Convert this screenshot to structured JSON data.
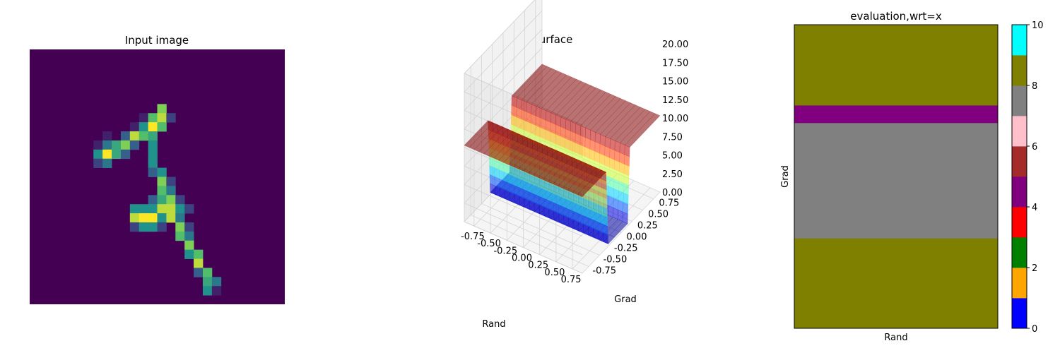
{
  "chart_data": [
    {
      "type": "heatmap",
      "title": "Input image",
      "grid": false,
      "axes_visible": false,
      "colormap": "viridis",
      "shape": [
        28,
        28
      ],
      "pixels": [
        {
          "r": 6,
          "c": 14,
          "v": 0.8
        },
        {
          "r": 7,
          "c": 12,
          "v": 0.1
        },
        {
          "r": 7,
          "c": 13,
          "v": 0.7
        },
        {
          "r": 7,
          "c": 14,
          "v": 0.9
        },
        {
          "r": 7,
          "c": 15,
          "v": 0.2
        },
        {
          "r": 8,
          "c": 11,
          "v": 0.1
        },
        {
          "r": 8,
          "c": 12,
          "v": 0.5
        },
        {
          "r": 8,
          "c": 13,
          "v": 1.0
        },
        {
          "r": 8,
          "c": 14,
          "v": 0.7
        },
        {
          "r": 9,
          "c": 8,
          "v": 0.1
        },
        {
          "r": 9,
          "c": 10,
          "v": 0.3
        },
        {
          "r": 9,
          "c": 11,
          "v": 0.9
        },
        {
          "r": 9,
          "c": 12,
          "v": 0.7
        },
        {
          "r": 9,
          "c": 13,
          "v": 0.6
        },
        {
          "r": 10,
          "c": 7,
          "v": 0.1
        },
        {
          "r": 10,
          "c": 8,
          "v": 0.4
        },
        {
          "r": 10,
          "c": 9,
          "v": 0.6
        },
        {
          "r": 10,
          "c": 10,
          "v": 0.8
        },
        {
          "r": 10,
          "c": 11,
          "v": 0.3
        },
        {
          "r": 10,
          "c": 13,
          "v": 0.5
        },
        {
          "r": 11,
          "c": 7,
          "v": 0.5
        },
        {
          "r": 11,
          "c": 8,
          "v": 1.0
        },
        {
          "r": 11,
          "c": 9,
          "v": 0.6
        },
        {
          "r": 11,
          "c": 10,
          "v": 0.3
        },
        {
          "r": 11,
          "c": 13,
          "v": 0.5
        },
        {
          "r": 12,
          "c": 7,
          "v": 0.2
        },
        {
          "r": 12,
          "c": 8,
          "v": 0.4
        },
        {
          "r": 12,
          "c": 13,
          "v": 0.5
        },
        {
          "r": 13,
          "c": 13,
          "v": 0.3
        },
        {
          "r": 13,
          "c": 14,
          "v": 0.5
        },
        {
          "r": 14,
          "c": 14,
          "v": 0.8
        },
        {
          "r": 14,
          "c": 15,
          "v": 0.2
        },
        {
          "r": 15,
          "c": 14,
          "v": 0.7
        },
        {
          "r": 15,
          "c": 15,
          "v": 0.4
        },
        {
          "r": 16,
          "c": 13,
          "v": 0.3
        },
        {
          "r": 16,
          "c": 14,
          "v": 0.6
        },
        {
          "r": 16,
          "c": 15,
          "v": 0.8
        },
        {
          "r": 16,
          "c": 16,
          "v": 0.2
        },
        {
          "r": 17,
          "c": 11,
          "v": 0.5
        },
        {
          "r": 17,
          "c": 12,
          "v": 0.5
        },
        {
          "r": 17,
          "c": 13,
          "v": 0.5
        },
        {
          "r": 17,
          "c": 14,
          "v": 0.9
        },
        {
          "r": 17,
          "c": 15,
          "v": 0.9
        },
        {
          "r": 17,
          "c": 16,
          "v": 0.5
        },
        {
          "r": 17,
          "c": 17,
          "v": 0.2
        },
        {
          "r": 18,
          "c": 11,
          "v": 0.9
        },
        {
          "r": 18,
          "c": 12,
          "v": 1.0
        },
        {
          "r": 18,
          "c": 13,
          "v": 1.0
        },
        {
          "r": 18,
          "c": 14,
          "v": 0.5
        },
        {
          "r": 18,
          "c": 15,
          "v": 0.9
        },
        {
          "r": 18,
          "c": 16,
          "v": 0.4
        },
        {
          "r": 19,
          "c": 11,
          "v": 0.2
        },
        {
          "r": 19,
          "c": 12,
          "v": 0.5
        },
        {
          "r": 19,
          "c": 13,
          "v": 0.5
        },
        {
          "r": 19,
          "c": 14,
          "v": 0.2
        },
        {
          "r": 19,
          "c": 16,
          "v": 0.8
        },
        {
          "r": 19,
          "c": 17,
          "v": 0.2
        },
        {
          "r": 20,
          "c": 16,
          "v": 0.7
        },
        {
          "r": 20,
          "c": 17,
          "v": 0.4
        },
        {
          "r": 21,
          "c": 17,
          "v": 0.8
        },
        {
          "r": 22,
          "c": 17,
          "v": 0.5
        },
        {
          "r": 22,
          "c": 18,
          "v": 0.7
        },
        {
          "r": 23,
          "c": 18,
          "v": 0.9
        },
        {
          "r": 24,
          "c": 18,
          "v": 0.3
        },
        {
          "r": 24,
          "c": 19,
          "v": 0.7
        },
        {
          "r": 25,
          "c": 19,
          "v": 0.6
        },
        {
          "r": 25,
          "c": 20,
          "v": 0.4
        },
        {
          "r": 26,
          "c": 19,
          "v": 0.5
        },
        {
          "r": 26,
          "c": 20,
          "v": 0.1
        }
      ]
    },
    {
      "type": "surface3d",
      "title": "Loss Surface",
      "xlabel": "Rand",
      "ylabel": "Grad",
      "zlabel": "",
      "grid": true,
      "colormap": "jet",
      "x_ticks": [
        "-0.75",
        "-0.50",
        "-0.25",
        "0.00",
        "0.25",
        "0.50",
        "0.75"
      ],
      "y_ticks": [
        "-0.75",
        "-0.50",
        "-0.25",
        "0.00",
        "0.25",
        "0.50",
        "0.75"
      ],
      "z_ticks": [
        "0.00",
        "2.50",
        "5.00",
        "7.50",
        "10.00",
        "12.50",
        "15.00",
        "17.50",
        "20.00"
      ],
      "xlim": [
        -0.9,
        0.9
      ],
      "ylim": [
        -0.9,
        0.9
      ],
      "zlim": [
        0,
        20
      ],
      "profile_along_grad": {
        "grad": [
          -0.9,
          -0.35,
          -0.3,
          -0.15,
          0.15,
          0.2,
          0.9
        ],
        "loss": [
          10.3,
          10.3,
          0.3,
          0.3,
          0.3,
          10.3,
          10.3
        ]
      }
    },
    {
      "type": "heatmap",
      "title": "evaluation,wrt=x",
      "xlabel": "Rand",
      "ylabel": "Grad",
      "grid": false,
      "bands_top_to_bottom": [
        {
          "value": 8,
          "color": "#808000",
          "fraction": 0.266
        },
        {
          "value": 5,
          "color": "#800080",
          "fraction": 0.058
        },
        {
          "value": 7,
          "color": "#808080",
          "fraction": 0.38
        },
        {
          "value": 8,
          "color": "#808000",
          "fraction": 0.296
        }
      ],
      "colorbar": {
        "range": [
          0,
          10
        ],
        "ticks": [
          "0",
          "2",
          "4",
          "6",
          "8",
          "10"
        ],
        "colors": [
          "#0000ff",
          "#ffa500",
          "#008000",
          "#ff0000",
          "#800080",
          "#a52a2a",
          "#ffc0cb",
          "#808080",
          "#808000",
          "#00ffff"
        ]
      }
    }
  ]
}
